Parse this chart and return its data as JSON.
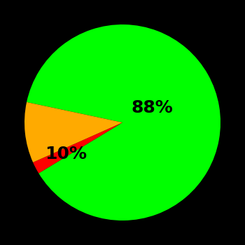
{
  "slices": [
    88,
    2,
    10
  ],
  "colors": [
    "#00ff00",
    "#ff0000",
    "#ffaa00"
  ],
  "labels": [
    "88%",
    "",
    "10%"
  ],
  "background_color": "#000000",
  "label_fontsize": 18,
  "label_fontweight": "bold",
  "startangle": 168,
  "figsize": [
    3.5,
    3.5
  ],
  "dpi": 100
}
